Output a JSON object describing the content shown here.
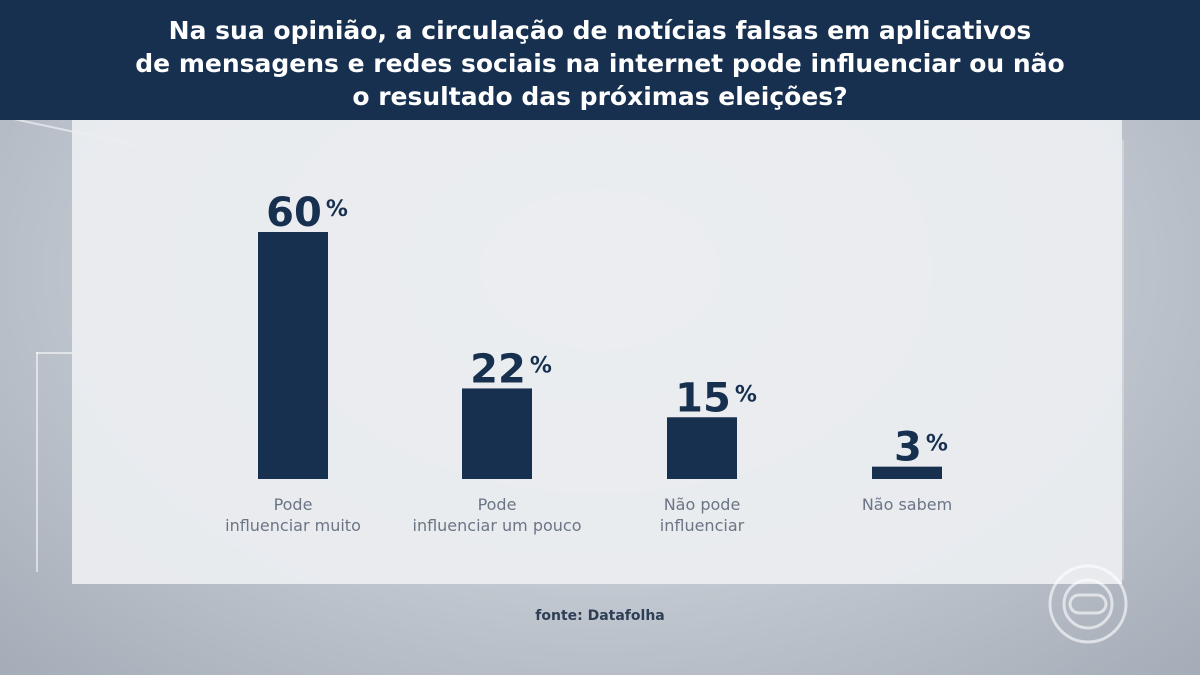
{
  "chart_data": {
    "type": "bar",
    "title": "Na sua opinião, a circulação de notícias falsas em aplicativos\nde mensagens e redes sociais na internet pode influenciar ou não\no resultado das próximas eleições?",
    "categories": [
      [
        "Pode",
        "influenciar muito"
      ],
      [
        "Pode",
        "influenciar um pouco"
      ],
      [
        "Não pode",
        "influenciar"
      ],
      [
        "Não sabem"
      ]
    ],
    "values": [
      60,
      22,
      15,
      3
    ],
    "value_labels": [
      "60",
      "22",
      "15",
      "3"
    ],
    "unit": "%",
    "ylim": [
      0,
      60
    ],
    "grid": false,
    "bar_color": "#17304f"
  },
  "source": "fonte: Datafolha",
  "colors": {
    "header_bg": "#17304f",
    "bar": "#17304f",
    "label_text": "#6b7585",
    "value_text": "#17304f"
  },
  "logo": {
    "icon": "globo-icon"
  }
}
